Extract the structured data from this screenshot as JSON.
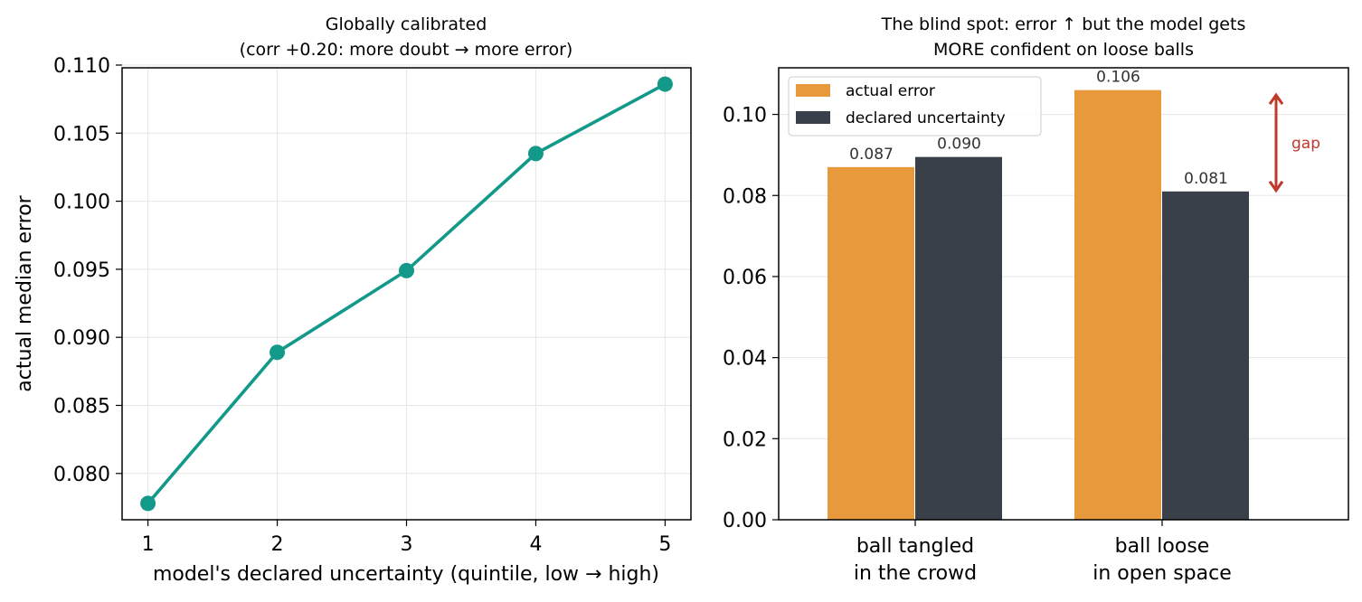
{
  "chart_data": [
    {
      "type": "line",
      "title": "Globally calibrated",
      "subtitle": "(corr +0.20: more doubt → more error)",
      "xlabel": "model's declared uncertainty (quintile, low → high)",
      "ylabel": "actual median error",
      "x": [
        1,
        2,
        3,
        4,
        5
      ],
      "y": [
        0.0778,
        0.0889,
        0.0949,
        0.1035,
        0.1086
      ],
      "xlim": [
        0.8,
        5.2
      ],
      "ylim": [
        0.0766,
        0.1098
      ],
      "xticks": [
        "1",
        "2",
        "3",
        "4",
        "5"
      ],
      "yticks": [
        "0.080",
        "0.085",
        "0.090",
        "0.095",
        "0.100",
        "0.105",
        "0.110"
      ],
      "grid": true,
      "color": "#13998a"
    },
    {
      "type": "bar",
      "title": "The blind spot: error ↑ but the model gets",
      "subtitle": "MORE confident on loose balls",
      "categories": [
        "ball tangled\nin the crowd",
        "ball loose\nin open space"
      ],
      "series": [
        {
          "name": "actual error",
          "values": [
            0.087,
            0.106
          ],
          "labels": [
            "0.087",
            "0.106"
          ],
          "color": "#e8993b"
        },
        {
          "name": "declared uncertainty",
          "values": [
            0.0895,
            0.081
          ],
          "labels": [
            "0.090",
            "0.081"
          ],
          "color": "#3a4049"
        }
      ],
      "ylim": [
        0,
        0.1115
      ],
      "yticks": [
        "0.00",
        "0.02",
        "0.04",
        "0.06",
        "0.08",
        "0.10"
      ],
      "grid": true,
      "legend": "top-left",
      "annotation": {
        "text": "gap",
        "from": 0.105,
        "to": 0.081,
        "color": "#c0392b"
      }
    }
  ]
}
